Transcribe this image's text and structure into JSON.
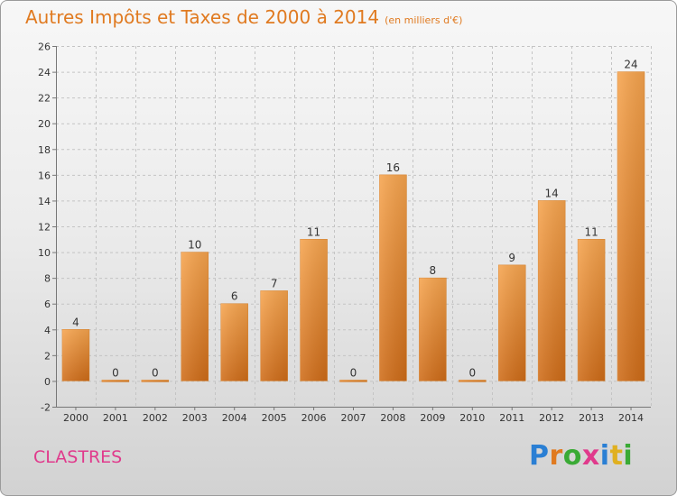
{
  "title": "Autres Impôts et Taxes de 2000 à 2014",
  "subtitle": "(en milliers d'€)",
  "place": "CLASTRES",
  "brand": "Proxiti",
  "brand_colors": [
    "#2a7fd4",
    "#e07a20",
    "#3aaa35",
    "#e03a8c",
    "#2a7fd4",
    "#e0b020",
    "#3aaa35"
  ],
  "colors": {
    "bar_light": "#f6a44e",
    "bar_dark": "#cf6c18",
    "title": "#e07a20",
    "place": "#e03a8c"
  },
  "chart_data": {
    "type": "bar",
    "title": "Autres Impôts et Taxes de 2000 à 2014",
    "subtitle": "(en milliers d'€)",
    "categories": [
      "2000",
      "2001",
      "2002",
      "2003",
      "2004",
      "2005",
      "2006",
      "2007",
      "2008",
      "2009",
      "2010",
      "2011",
      "2012",
      "2013",
      "2014"
    ],
    "values": [
      4,
      0,
      0,
      10,
      6,
      7,
      11,
      0,
      16,
      8,
      0,
      9,
      14,
      11,
      24
    ],
    "ylim": [
      -2,
      26
    ],
    "yticks": [
      -2,
      0,
      2,
      4,
      6,
      8,
      10,
      12,
      14,
      16,
      18,
      20,
      22,
      24,
      26
    ],
    "grid": true
  }
}
